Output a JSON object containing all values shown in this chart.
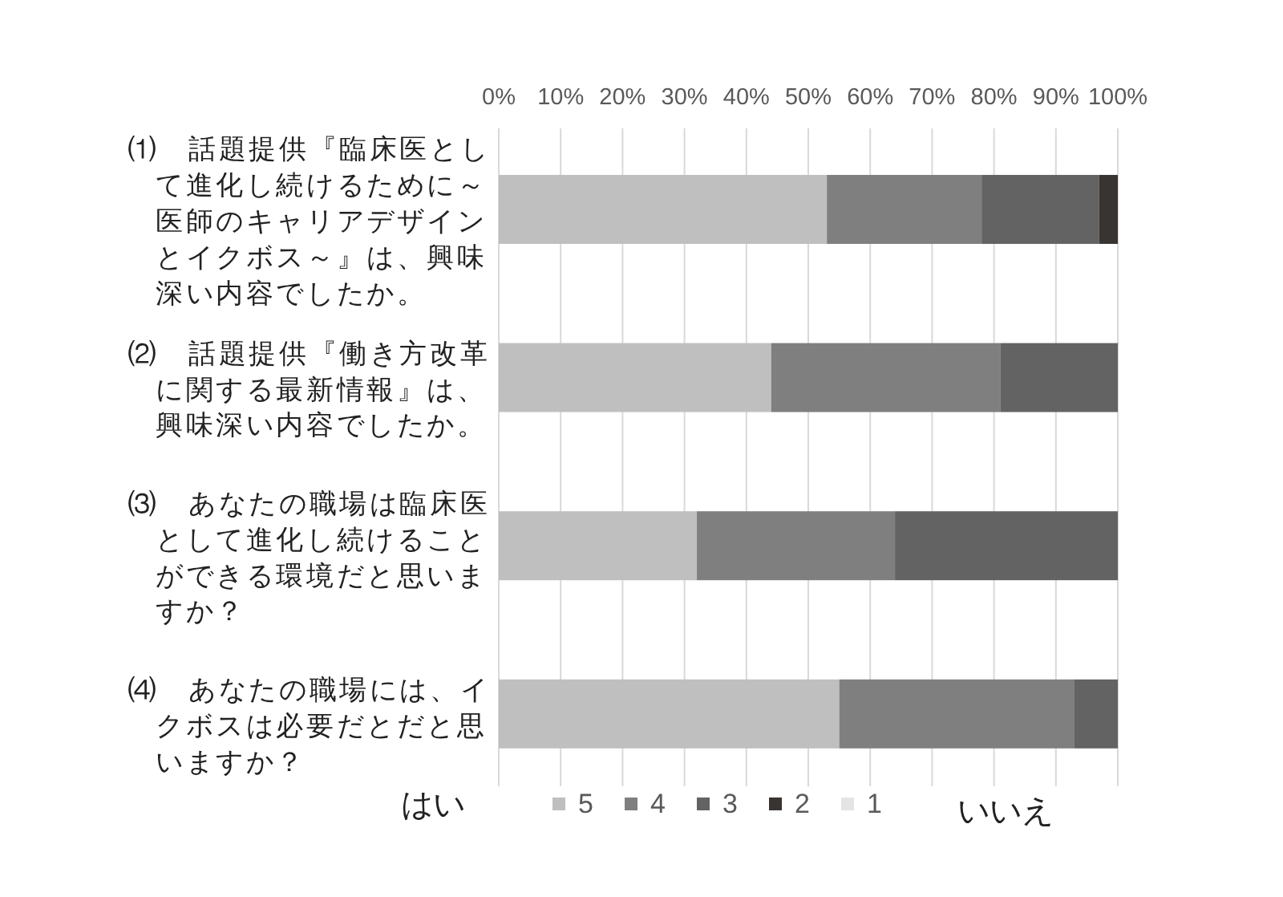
{
  "chart_data": {
    "type": "bar",
    "orientation": "horizontal",
    "stacked": true,
    "categories": [
      "⑴　話題提供『臨床医として進化し続けるために～医師のキャリアデザインとイクボス～』は、興味深い内容でしたか。",
      "⑵　話題提供『働き方改革に関する最新情報』は、興味深い内容でしたか。",
      "⑶　あなたの職場は臨床医として進化し続けることができる環境だと思いますか？",
      "⑷　あなたの職場には、イクボスは必要だとだと思いますか？"
    ],
    "series": [
      {
        "name": "5",
        "color": "#bfbfbf",
        "values": [
          53,
          44,
          32,
          55
        ]
      },
      {
        "name": "4",
        "color": "#7f7f7f",
        "values": [
          25,
          37,
          32,
          38
        ]
      },
      {
        "name": "3",
        "color": "#636363",
        "values": [
          19,
          19,
          36,
          7
        ]
      },
      {
        "name": "2",
        "color": "#383432",
        "values": [
          3,
          0,
          0,
          0
        ]
      },
      {
        "name": "1",
        "color": "#e4e4e4",
        "values": [
          0,
          0,
          0,
          0
        ]
      }
    ],
    "xlim": [
      0,
      100
    ],
    "xticks": [
      {
        "value": 0,
        "label": "0%"
      },
      {
        "value": 10,
        "label": "10%"
      },
      {
        "value": 20,
        "label": "20%"
      },
      {
        "value": 30,
        "label": "30%"
      },
      {
        "value": 40,
        "label": "40%"
      },
      {
        "value": 50,
        "label": "50%"
      },
      {
        "value": 60,
        "label": "60%"
      },
      {
        "value": 70,
        "label": "70%"
      },
      {
        "value": 80,
        "label": "80%"
      },
      {
        "value": 90,
        "label": "90%"
      },
      {
        "value": 100,
        "label": "100%"
      }
    ],
    "grid": "x",
    "legend": "bottom",
    "annotations": [
      "はい",
      "いいえ"
    ]
  }
}
